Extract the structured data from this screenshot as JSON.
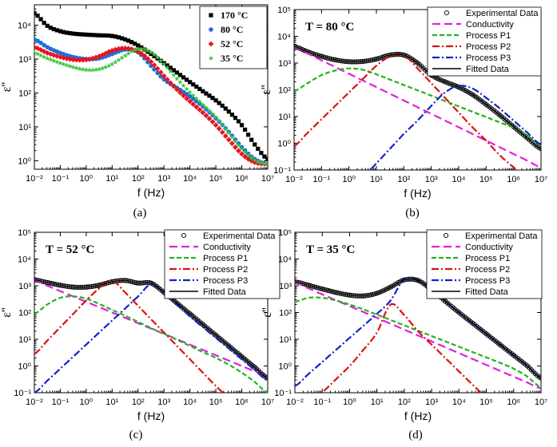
{
  "figure": {
    "panels": [
      {
        "id": "a",
        "caption": "(a)",
        "xlabel": "f (Hz)",
        "ylabel": "ε''",
        "xticks": [
          "10⁻²",
          "10⁻¹",
          "10⁰",
          "10¹",
          "10²",
          "10³",
          "10⁴",
          "10⁵",
          "10⁶",
          "10⁷"
        ],
        "yticks": [
          "10⁰",
          "10¹",
          "10²",
          "10³",
          "10⁴"
        ],
        "annotation": "",
        "legend": [
          "170 °C",
          "80 °C",
          "52 °C",
          "35 °C"
        ]
      },
      {
        "id": "b",
        "caption": "(b)",
        "xlabel": "f (Hz)",
        "ylabel": "ε''",
        "xticks": [
          "10⁻²",
          "10⁻¹",
          "10⁰",
          "10¹",
          "10²",
          "10³",
          "10⁴",
          "10⁵",
          "10⁶",
          "10⁷"
        ],
        "yticks": [
          "10⁻¹",
          "10⁰",
          "10¹",
          "10²",
          "10³",
          "10⁴",
          "10⁵"
        ],
        "annotation": "T = 80 °C",
        "legend": [
          "Experimental Data",
          "Conductivity",
          "Process P1",
          "Process P2",
          "Process P3",
          "Fitted Data"
        ]
      },
      {
        "id": "c",
        "caption": "(c)",
        "xlabel": "f (Hz)",
        "ylabel": "ε''",
        "xticks": [
          "10⁻²",
          "10⁻¹",
          "10⁰",
          "10¹",
          "10²",
          "10³",
          "10⁴",
          "10⁵",
          "10⁶",
          "10⁷"
        ],
        "yticks": [
          "10⁻¹",
          "10⁰",
          "10¹",
          "10²",
          "10³",
          "10⁴",
          "10⁵"
        ],
        "annotation": "T = 52 °C",
        "legend": [
          "Experimental Data",
          "Conductivity",
          "Process P1",
          "Process P2",
          "Process P3",
          "Fitted Data"
        ]
      },
      {
        "id": "d",
        "caption": "(d)",
        "xlabel": "f (Hz)",
        "ylabel": "ε''",
        "xticks": [
          "10⁻²",
          "10⁻¹",
          "10⁰",
          "10¹",
          "10²",
          "10³",
          "10⁴",
          "10⁵",
          "10⁶",
          "10⁷"
        ],
        "yticks": [
          "10⁻¹",
          "10⁰",
          "10¹",
          "10²",
          "10³",
          "10⁴",
          "10⁵"
        ],
        "annotation": "T = 35 °C",
        "legend": [
          "Experimental Data",
          "Conductivity",
          "Process P1",
          "Process P2",
          "Process P3",
          "Fitted Data"
        ]
      }
    ]
  },
  "colors": {
    "s170": "#000000",
    "s80": "#1f6fd6",
    "s52": "#e8141e",
    "s35": "#3cc43c",
    "conductivity": "#e020e0",
    "p1": "#22b422",
    "p2": "#dd1111",
    "p3": "#1122cc",
    "fit": "#000000"
  },
  "chart_data": [
    {
      "type": "scatter",
      "title": "",
      "xlabel": "f (Hz)",
      "ylabel": "ε''",
      "xscale": "log",
      "yscale": "log",
      "xlim": [
        0.01,
        10000000
      ],
      "ylim": [
        0.6,
        40000
      ],
      "legend_position": "top-right",
      "series": [
        {
          "name": "170 °C",
          "marker": "square",
          "x_log10": [
            -2,
            -1.5,
            -1,
            -0.5,
            0,
            0.5,
            1,
            1.5,
            2,
            2.5,
            3,
            3.5,
            4,
            4.5,
            5,
            5.5,
            6,
            6.5,
            7
          ],
          "log10_y": [
            4.35,
            3.98,
            3.82,
            3.75,
            3.72,
            3.7,
            3.68,
            3.58,
            3.4,
            3.15,
            2.88,
            2.6,
            2.32,
            2.05,
            1.78,
            1.45,
            1.05,
            0.48,
            0.05
          ]
        },
        {
          "name": "80 °C",
          "marker": "circle",
          "x_log10": [
            -2,
            -1.5,
            -1,
            -0.5,
            0,
            0.5,
            1,
            1.5,
            2,
            2.5,
            3,
            3.5,
            4,
            4.5,
            5,
            5.5,
            6,
            6.5,
            7
          ],
          "log10_y": [
            3.58,
            3.35,
            3.18,
            3.06,
            3.0,
            3.02,
            3.15,
            3.28,
            3.2,
            2.8,
            2.4,
            2.15,
            1.9,
            1.6,
            1.25,
            0.85,
            0.4,
            0.05,
            -0.1
          ]
        },
        {
          "name": "52 °C",
          "marker": "diamond",
          "x_log10": [
            -2,
            -1.5,
            -1,
            -0.5,
            0,
            0.5,
            1,
            1.5,
            2,
            2.5,
            3,
            3.5,
            4,
            4.5,
            5,
            5.5,
            6,
            6.5,
            7
          ],
          "log10_y": [
            3.35,
            3.18,
            3.06,
            2.98,
            2.98,
            3.08,
            3.25,
            3.32,
            3.22,
            2.92,
            2.5,
            2.1,
            1.75,
            1.42,
            1.05,
            0.62,
            0.2,
            -0.05,
            -0.1
          ]
        },
        {
          "name": "35 °C",
          "marker": "star",
          "x_log10": [
            -2,
            -1.5,
            -1,
            -0.5,
            0,
            0.5,
            1,
            1.5,
            2,
            2.5,
            3,
            3.5,
            4,
            4.5,
            5,
            5.5,
            6,
            6.5,
            7
          ],
          "log10_y": [
            3.18,
            3.02,
            2.88,
            2.76,
            2.68,
            2.7,
            2.85,
            3.1,
            3.3,
            3.2,
            2.85,
            2.42,
            2.02,
            1.65,
            1.28,
            0.82,
            0.35,
            0.02,
            -0.1
          ]
        }
      ]
    },
    {
      "type": "line",
      "title": "T = 80 °C",
      "xlabel": "f (Hz)",
      "ylabel": "ε''",
      "xscale": "log",
      "yscale": "log",
      "xlim": [
        0.01,
        10000000
      ],
      "ylim": [
        0.1,
        100000
      ],
      "legend_position": "top-right",
      "x_log10": [
        -2,
        -1.5,
        -1,
        -0.5,
        0,
        0.5,
        1,
        1.5,
        2,
        2.5,
        3,
        3.5,
        4,
        4.5,
        5,
        5.5,
        6,
        6.5,
        7
      ],
      "series": [
        {
          "name": "Experimental Data",
          "style": "open-circle",
          "log10_y": [
            3.62,
            3.42,
            3.25,
            3.12,
            3.05,
            3.06,
            3.15,
            3.3,
            3.3,
            3.0,
            2.55,
            2.3,
            2.1,
            1.82,
            1.45,
            1.05,
            0.62,
            0.2,
            -0.2
          ]
        },
        {
          "name": "Conductivity",
          "style": "dash",
          "log10_y": [
            3.6,
            3.35,
            3.1,
            2.85,
            2.6,
            2.35,
            2.1,
            1.85,
            1.6,
            1.35,
            1.1,
            0.85,
            0.6,
            0.35,
            0.1,
            -0.15,
            -0.4,
            -0.65,
            -0.9
          ]
        },
        {
          "name": "Process P1",
          "style": "dash",
          "log10_y": [
            1.95,
            2.25,
            2.55,
            2.72,
            2.8,
            2.75,
            2.58,
            2.38,
            2.18,
            1.98,
            1.78,
            1.58,
            1.38,
            1.18,
            0.98,
            0.78,
            0.58,
            0.3,
            -0.1
          ]
        },
        {
          "name": "Process P2",
          "style": "dash-dot",
          "log10_y": [
            -0.1,
            0.4,
            0.9,
            1.4,
            1.9,
            2.4,
            2.9,
            3.25,
            3.3,
            2.8,
            2.25,
            1.7,
            1.15,
            0.6,
            0.1,
            -0.45,
            -0.9,
            -1.3,
            -1.6
          ]
        },
        {
          "name": "Process P3",
          "style": "dash-dot",
          "log10_y": [
            -3.8,
            -3.3,
            -2.8,
            -2.3,
            -1.8,
            -1.3,
            -0.75,
            -0.2,
            0.35,
            0.85,
            1.4,
            1.9,
            2.15,
            2.05,
            1.7,
            1.3,
            0.85,
            0.4,
            -0.05
          ]
        },
        {
          "name": "Fitted Data",
          "style": "solid",
          "log10_y": [
            3.62,
            3.42,
            3.25,
            3.12,
            3.05,
            3.06,
            3.15,
            3.3,
            3.3,
            3.0,
            2.55,
            2.3,
            2.1,
            1.82,
            1.45,
            1.05,
            0.62,
            0.2,
            -0.2
          ]
        }
      ]
    },
    {
      "type": "line",
      "title": "T = 52 °C",
      "xlabel": "f (Hz)",
      "ylabel": "ε''",
      "xscale": "log",
      "yscale": "log",
      "xlim": [
        0.01,
        10000000
      ],
      "ylim": [
        0.1,
        100000
      ],
      "legend_position": "top-right",
      "x_log10": [
        -2,
        -1.5,
        -1,
        -0.5,
        0,
        0.5,
        1,
        1.5,
        2,
        2.5,
        3,
        3.5,
        4,
        4.5,
        5,
        5.5,
        6,
        6.5,
        7
      ],
      "series": [
        {
          "name": "Experimental Data",
          "style": "open-circle",
          "log10_y": [
            3.22,
            3.12,
            3.02,
            2.95,
            2.95,
            3.02,
            3.15,
            3.2,
            3.1,
            3.1,
            2.75,
            2.35,
            1.95,
            1.55,
            1.15,
            0.75,
            0.35,
            -0.05,
            -0.45
          ]
        },
        {
          "name": "Conductivity",
          "style": "dash",
          "log10_y": [
            3.2,
            3.0,
            2.8,
            2.6,
            2.4,
            2.2,
            2.0,
            1.8,
            1.6,
            1.4,
            1.2,
            1.0,
            0.8,
            0.6,
            0.4,
            0.2,
            0.0,
            -0.2,
            -0.4
          ]
        },
        {
          "name": "Process P1",
          "style": "dash",
          "log10_y": [
            1.95,
            2.3,
            2.55,
            2.6,
            2.52,
            2.32,
            2.1,
            1.88,
            1.65,
            1.42,
            1.2,
            0.98,
            0.75,
            0.52,
            0.3,
            0.05,
            -0.25,
            -0.6,
            -1.0
          ]
        },
        {
          "name": "Process P2",
          "style": "dash-dot",
          "log10_y": [
            0.45,
            0.95,
            1.45,
            1.95,
            2.45,
            2.9,
            3.18,
            2.75,
            2.25,
            1.75,
            1.25,
            0.75,
            0.25,
            -0.25,
            -0.75,
            -1.2,
            -1.6,
            -2.0,
            -2.4
          ]
        },
        {
          "name": "Process P3",
          "style": "dash-dot",
          "log10_y": [
            -1.0,
            -0.55,
            -0.1,
            0.35,
            0.8,
            1.25,
            1.7,
            2.15,
            2.6,
            3.05,
            2.75,
            2.3,
            1.85,
            1.45,
            1.05,
            0.65,
            0.25,
            -0.15,
            -0.55
          ]
        },
        {
          "name": "Fitted Data",
          "style": "solid",
          "log10_y": [
            3.22,
            3.12,
            3.02,
            2.95,
            2.95,
            3.02,
            3.15,
            3.2,
            3.1,
            3.1,
            2.75,
            2.35,
            1.95,
            1.55,
            1.15,
            0.75,
            0.35,
            -0.05,
            -0.45
          ]
        }
      ]
    },
    {
      "type": "line",
      "title": "T = 35 °C",
      "xlabel": "f (Hz)",
      "ylabel": "ε''",
      "xscale": "log",
      "yscale": "log",
      "xlim": [
        0.01,
        10000000
      ],
      "ylim": [
        0.1,
        100000
      ],
      "legend_position": "top-right",
      "x_log10": [
        -2,
        -1.5,
        -1,
        -0.5,
        0,
        0.5,
        1,
        1.5,
        2,
        2.5,
        3,
        3.5,
        4,
        4.5,
        5,
        5.5,
        6,
        6.5,
        7
      ],
      "series": [
        {
          "name": "Experimental Data",
          "style": "open-circle",
          "log10_y": [
            3.15,
            3.02,
            2.88,
            2.75,
            2.65,
            2.62,
            2.72,
            2.95,
            3.22,
            3.2,
            2.85,
            2.42,
            2.0,
            1.6,
            1.2,
            0.8,
            0.4,
            0.0,
            -0.45
          ]
        },
        {
          "name": "Conductivity",
          "style": "dash",
          "log10_y": [
            3.12,
            2.9,
            2.68,
            2.46,
            2.24,
            2.02,
            1.8,
            1.58,
            1.36,
            1.14,
            0.92,
            0.7,
            0.48,
            0.26,
            0.04,
            -0.18,
            -0.4,
            -0.62,
            -0.84
          ]
        },
        {
          "name": "Process P1",
          "style": "dash",
          "log10_y": [
            2.4,
            2.55,
            2.55,
            2.45,
            2.3,
            2.12,
            1.92,
            1.72,
            1.52,
            1.32,
            1.12,
            0.92,
            0.72,
            0.52,
            0.32,
            0.12,
            -0.1,
            -0.4,
            -0.8
          ]
        },
        {
          "name": "Process P2",
          "style": "dash-dot",
          "log10_y": [
            -2.0,
            -1.5,
            -1.0,
            -0.5,
            0.0,
            0.6,
            1.25,
            2.3,
            1.9,
            1.3,
            0.8,
            0.3,
            -0.2,
            -0.7,
            -1.2,
            -1.7,
            -2.2,
            -2.7,
            -3.2
          ]
        },
        {
          "name": "Process P3",
          "style": "dash-dot",
          "log10_y": [
            -0.75,
            -0.3,
            0.15,
            0.6,
            1.05,
            1.5,
            1.95,
            2.45,
            3.25,
            3.2,
            2.85,
            2.42,
            2.0,
            1.6,
            1.2,
            0.8,
            0.4,
            0.0,
            -0.45
          ]
        },
        {
          "name": "Fitted Data",
          "style": "solid",
          "log10_y": [
            3.15,
            3.02,
            2.88,
            2.75,
            2.65,
            2.62,
            2.72,
            2.95,
            3.22,
            3.2,
            2.85,
            2.42,
            2.0,
            1.6,
            1.2,
            0.8,
            0.4,
            0.0,
            -0.45
          ]
        }
      ]
    }
  ]
}
